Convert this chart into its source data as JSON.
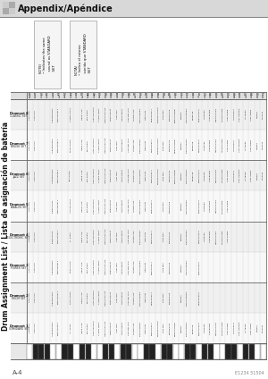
{
  "title": "Appendix/Apéndice",
  "subtitle": "Drum Assignment List / Lista de asignación de batería",
  "page_label": "A-4",
  "copyright": "E1234 51504",
  "bg_color": "#ffffff",
  "note_keys": [
    "E1",
    "F1",
    "G1",
    "A1",
    "B1",
    "C2",
    "D2",
    "E2",
    "F2",
    "G2",
    "A2",
    "B2",
    "C3",
    "D3",
    "E3",
    "F3",
    "G3",
    "A3",
    "B3",
    "C4",
    "D4",
    "E4",
    "F4",
    "G4",
    "A4",
    "B4",
    "C5",
    "D5",
    "E5",
    "F5",
    "G5",
    "A5",
    "B5",
    "C6",
    "D6",
    "E6",
    "F6",
    "G6",
    "A6",
    "B6",
    "C7"
  ],
  "midi_nums": [
    28,
    29,
    31,
    33,
    35,
    36,
    38,
    40,
    41,
    43,
    45,
    47,
    48,
    50,
    52,
    53,
    55,
    57,
    59,
    60,
    62,
    64,
    65,
    67,
    69,
    71,
    72,
    74,
    76,
    77,
    79,
    81,
    83,
    84,
    86,
    88,
    89,
    91,
    93,
    95,
    96
  ],
  "black_keys_midi": [
    29,
    31,
    33,
    38,
    40,
    43,
    45,
    50,
    52,
    55,
    57,
    62,
    64,
    67,
    69,
    74,
    76,
    79,
    81,
    86,
    88,
    91,
    93
  ],
  "drumset_rows": [
    {
      "label": "Drumset 1\nSTANDARD SET",
      "sublabel": "STANDARD SET"
    },
    {
      "label": "Drumset 2\nROOM SET",
      "sublabel": "ROOM SET"
    },
    {
      "label": "Drumset 3\nPOWER SET",
      "sublabel": "POWER SET"
    },
    {
      "label": "Drumset 4\nELECTRONIC SET",
      "sublabel": "ELECTRONIC SET"
    },
    {
      "label": "Drumset 5\nANALOG SET",
      "sublabel": "ANALOG SET"
    },
    {
      "label": "Drumset 6\nJAZZ SET",
      "sublabel": "JAZZ SET"
    },
    {
      "label": "Drumset 7\nBRUSH SET",
      "sublabel": "BRUSH SET"
    },
    {
      "label": "Drumset 8\nCLASSIC SET",
      "sublabel": "CLASSIC SET"
    }
  ],
  "drum_data": {
    "0": {
      "0": "Seq Click",
      "1": "Seq Click",
      "2": "Seq Click",
      "3": "Seq Click",
      "4": "Seq Click",
      "5": "Seq Click",
      "6": "Seq Click",
      "7": "Seq Click"
    },
    "1": {
      "0": "Seq Click",
      "1": "Seq Click",
      "2": "Seq Click",
      "3": "Seq Click",
      "4": "Seq Click",
      "5": "Seq Click",
      "6": "Seq Click",
      "7": "Seq Click"
    },
    "4": {
      "0": "Ac.BassDrum2",
      "1": "Ac.BassDrum2",
      "2": "Ac.BassDrum2",
      "3": "El.BassDrum",
      "4": "El.BassDrum",
      "5": "Ac.BassDrum2",
      "6": "Ac.BassDrum2",
      "7": "Ac.BassDrum2"
    },
    "5": {
      "0": "Bass Drum 1",
      "1": "Bass Drum 1",
      "2": "Bass Drum 1",
      "3": "Bass Drum 1",
      "4": "Bass Drum 1",
      "5": "Bass Drum 1",
      "6": "Bass Drum 1",
      "7": "Bass Drum 1"
    },
    "7": {
      "0": "Ac. Snare",
      "1": "Room Snare",
      "2": "Powr Snare",
      "3": "El. Snare",
      "4": "Analog Snare",
      "5": "Jazz Snare",
      "6": "Brush Snare",
      "7": "Classic Snare"
    },
    "9": {
      "0": "Hand Clap",
      "1": "Hand Clap",
      "2": "Hand Clap",
      "3": "Hand Clap",
      "4": "Hand Clap",
      "5": "Hand Clap",
      "6": "Hand Clap",
      "7": "Hand Clap"
    },
    "10": {
      "0": "Elec.Snare",
      "1": "Elec.Snare",
      "2": "Elec.Snare",
      "3": "Elec.Snare",
      "4": "Elec.Snare",
      "5": "Elec.Snare",
      "6": "Elec.Snare",
      "7": "Elec.Snare"
    },
    "11": {
      "0": "Low FloorTom",
      "1": "Low FloorTom",
      "2": "Low FloorTom",
      "3": "Low FloorTom",
      "4": "Low FloorTom",
      "5": "Low FloorTom",
      "6": "Low FloorTom",
      "7": "Low FloorTom"
    },
    "12": {
      "0": "Closed HiHat",
      "1": "Closed HiHat",
      "2": "Closed HiHat",
      "3": "Closed HiHat",
      "4": "Closed HiHat",
      "5": "Closed HiHat",
      "6": "Closed HiHat",
      "7": "Closed HiHat"
    },
    "13": {
      "0": "High FloorTom",
      "1": "High FloorTom",
      "2": "High FloorTom",
      "3": "High FloorTom",
      "4": "High FloorTom",
      "5": "High FloorTom",
      "6": "High FloorTom",
      "7": "High FloorTom"
    },
    "14": {
      "0": "Pedal HiHat",
      "1": "Pedal HiHat",
      "2": "Pedal HiHat",
      "3": "Pedal HiHat",
      "4": "Pedal HiHat",
      "5": "Pedal HiHat",
      "6": "Pedal HiHat",
      "7": "Pedal HiHat"
    },
    "15": {
      "0": "Low Tom",
      "1": "Low Tom",
      "2": "Low Tom",
      "3": "Low Tom",
      "4": "Low Tom",
      "5": "Low Tom",
      "6": "Low Tom",
      "7": "Low Tom"
    },
    "16": {
      "0": "Open HiHat",
      "1": "Open HiHat",
      "2": "Open HiHat",
      "3": "Open HiHat",
      "4": "Open HiHat",
      "5": "Open HiHat",
      "6": "Open HiHat",
      "7": "Open HiHat"
    },
    "17": {
      "0": "Low-Mid Tom",
      "1": "Low-Mid Tom",
      "2": "Low-Mid Tom",
      "3": "Low-Mid Tom",
      "4": "Low-Mid Tom",
      "5": "Low-Mid Tom",
      "6": "Low-Mid Tom",
      "7": "Low-Mid Tom"
    },
    "18": {
      "0": "Hi-Mid Tom",
      "1": "Hi-Mid Tom",
      "2": "Hi-Mid Tom",
      "3": "Hi-Mid Tom",
      "4": "Hi-Mid Tom",
      "5": "Hi-Mid Tom",
      "6": "Hi-Mid Tom",
      "7": "Hi-Mid Tom"
    },
    "19": {
      "0": "CrashCymbal1",
      "1": "CrashCymbal1",
      "2": "CrashCymbal1",
      "3": "CrashCymbal1",
      "4": "CrashCymbal1",
      "5": "CrashCymbal1",
      "6": "CrashCymbal1",
      "7": "CrashCymbal1"
    },
    "20": {
      "0": "High Tom",
      "1": "High Tom",
      "2": "High Tom",
      "3": "High Tom",
      "4": "High Tom",
      "5": "High Tom",
      "6": "High Tom",
      "7": "High Tom"
    },
    "21": {
      "0": "RideCymbal1",
      "1": "RideCymbal1",
      "2": "RideCymbal1",
      "3": "RideCymbal1",
      "4": "RideCymbal1",
      "5": "RideCymbal1",
      "6": "RideCymbal1",
      "7": "RideCymbal1"
    },
    "22": {
      "0": "ChineseCymbal",
      "5": "ChineseCymbal",
      "6": "ChineseCymbal",
      "7": "ChineseCymbal"
    },
    "23": {
      "0": "Ride Bell",
      "1": "Ride Bell",
      "2": "Ride Bell",
      "3": "Ride Bell",
      "4": "Ride Bell",
      "5": "Ride Bell",
      "6": "Ride Bell",
      "7": "Ride Bell"
    },
    "24": {
      "0": "Tambourine",
      "1": "Tambourine",
      "2": "Tambourine",
      "3": "Tambourine",
      "4": "Tambourine",
      "5": "Tambourine",
      "6": "Tambourine",
      "7": "Tambourine"
    },
    "25": {
      "0": "SplashCymbal",
      "5": "SplashCymbal",
      "6": "SplashCymbal",
      "7": "SplashCymbal"
    },
    "26": {
      "0": "Cowbell",
      "1": "Cowbell",
      "2": "Cowbell",
      "3": "Cowbell",
      "4": "Cowbell",
      "5": "Cowbell",
      "6": "Cowbell",
      "7": "Cowbell"
    },
    "27": {
      "0": "CrashCymbal2",
      "1": "CrashCymbal2",
      "2": "CrashCymbal2",
      "3": "CrashCymbal2",
      "4": "CrashCymbal2",
      "5": "CrashCymbal2",
      "6": "CrashCymbal2",
      "7": "CrashCymbal2"
    },
    "28": {
      "0": "Vibraslap",
      "5": "Vibraslap",
      "6": "Vibraslap",
      "7": "Vibraslap"
    },
    "29": {
      "0": "RideCymbal2",
      "1": "RideCymbal2",
      "2": "RideCymbal2",
      "3": "RideCymbal2",
      "4": "RideCymbal2",
      "5": "RideCymbal2",
      "6": "RideCymbal2",
      "7": "RideCymbal2"
    },
    "30": {
      "0": "Hi Bongo",
      "3": "Hi Bongo",
      "4": "Hi Bongo",
      "5": "Hi Bongo",
      "6": "Hi Bongo",
      "7": "Hi Bongo"
    },
    "31": {
      "0": "Low Bongo",
      "3": "Low Bongo",
      "4": "Low Bongo",
      "5": "Low Bongo",
      "6": "Low Bongo",
      "7": "Low Bongo"
    },
    "32": {
      "0": "MuteHiConga",
      "3": "MuteHiConga",
      "4": "MuteHiConga",
      "5": "MuteHiConga",
      "6": "MuteHiConga",
      "7": "MuteHiConga"
    },
    "33": {
      "0": "OpenHiConga",
      "3": "OpenHiConga",
      "4": "OpenHiConga",
      "5": "OpenHiConga",
      "6": "OpenHiConga",
      "7": "OpenHiConga"
    },
    "34": {
      "0": "Low Conga",
      "3": "Low Conga",
      "4": "Low Conga",
      "5": "Low Conga",
      "6": "Low Conga",
      "7": "Low Conga"
    },
    "35": {
      "0": "Hi Timbale",
      "5": "Hi Timbale",
      "6": "Hi Timbale",
      "7": "Hi Timbale"
    },
    "36": {
      "0": "Low Timbale",
      "5": "Low Timbale",
      "6": "Low Timbale",
      "7": "Low Timbale"
    },
    "37": {
      "0": "Hi Agogo",
      "5": "Hi Agogo",
      "6": "Hi Agogo",
      "7": "Hi Agogo"
    },
    "38": {
      "0": "Low Agogo",
      "5": "Low Agogo",
      "6": "Low Agogo",
      "7": "Low Agogo"
    },
    "39": {
      "0": "Cabasa",
      "5": "Cabasa",
      "6": "Cabasa",
      "7": "Cabasa"
    },
    "40": {
      "0": "Maracas",
      "5": "Maracas",
      "6": "Maracas",
      "7": "Maracas"
    }
  },
  "header_icon_color": "#aaaaaa",
  "table_line_color": "#bbbbbb",
  "thick_line_color": "#666666",
  "row_header_bg": "#e8e8e8",
  "alt_row_bg": "#f4f4f4"
}
